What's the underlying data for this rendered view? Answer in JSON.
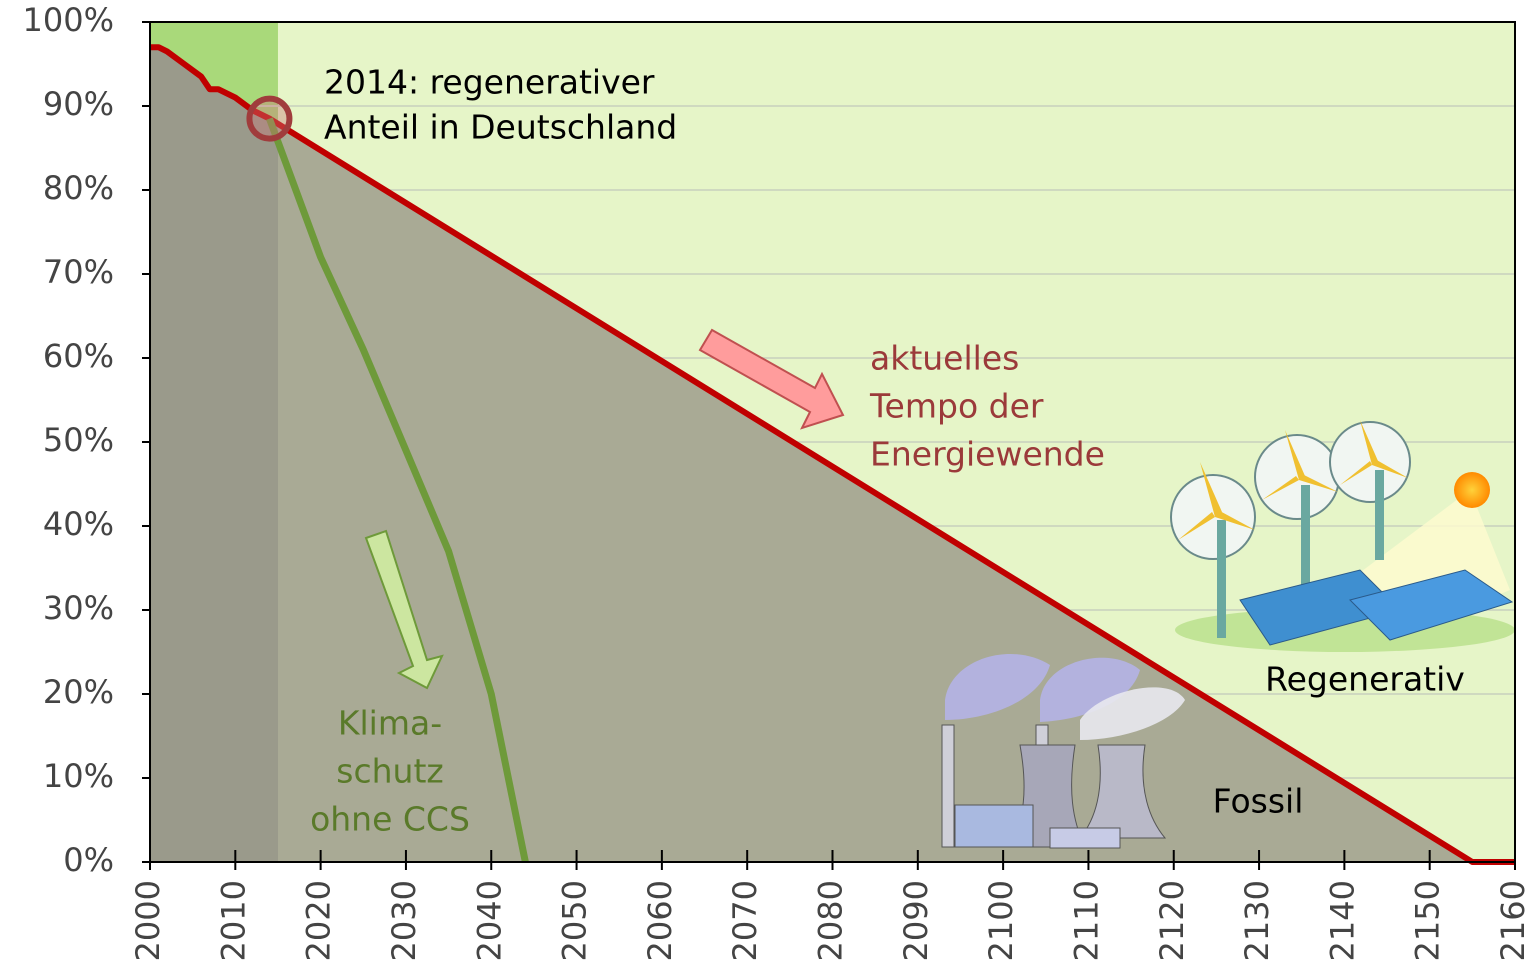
{
  "chart_data": {
    "type": "line",
    "xlim": [
      2000,
      2160
    ],
    "xticks": [
      2000,
      2010,
      2020,
      2030,
      2040,
      2050,
      2060,
      2070,
      2080,
      2090,
      2100,
      2110,
      2120,
      2130,
      2140,
      2150,
      2160
    ],
    "ylim": [
      0,
      100
    ],
    "yticks": [
      {
        "value": 0,
        "label": "0%"
      },
      {
        "value": 10,
        "label": "10%"
      },
      {
        "value": 20,
        "label": "20%"
      },
      {
        "value": 30,
        "label": "30%"
      },
      {
        "value": 40,
        "label": "40%"
      },
      {
        "value": 50,
        "label": "50%"
      },
      {
        "value": 60,
        "label": "60%"
      },
      {
        "value": 70,
        "label": "70%"
      },
      {
        "value": 80,
        "label": "80%"
      },
      {
        "value": 90,
        "label": "90%"
      },
      {
        "value": 100,
        "label": "100%"
      }
    ],
    "grid": true,
    "shaded_until": 2015,
    "marker": {
      "x": 2014,
      "y": 88.5
    },
    "series": [
      {
        "color": "#c00000",
        "x": [
          2000,
          2001,
          2002,
          2004,
          2006,
          2007,
          2008,
          2010,
          2012,
          2014,
          2155,
          2160
        ],
        "values": [
          97,
          97,
          96.5,
          95,
          93.5,
          92,
          92,
          91,
          89.5,
          88.5,
          0,
          0
        ]
      },
      {
        "color": "#6e9a3a",
        "x": [
          2014,
          2020,
          2025,
          2030,
          2035,
          2040,
          2044
        ],
        "values": [
          88.5,
          72,
          61,
          49,
          37,
          20,
          0
        ]
      }
    ],
    "annotations": [
      {
        "lines": [
          "2014: regenerativer",
          "Anteil in Deutschland"
        ],
        "color": "#000000"
      },
      {
        "lines": [
          "aktuelles",
          "Tempo der",
          "Energiewende"
        ],
        "color": "#9b3a3a"
      },
      {
        "lines": [
          "Klima-",
          "schutz",
          "ohne CCS"
        ],
        "color": "#5a7a2a"
      },
      {
        "lines": [
          "Regenerativ"
        ],
        "color": "#000000"
      },
      {
        "lines": [
          "Fossil"
        ],
        "color": "#000000"
      }
    ]
  }
}
